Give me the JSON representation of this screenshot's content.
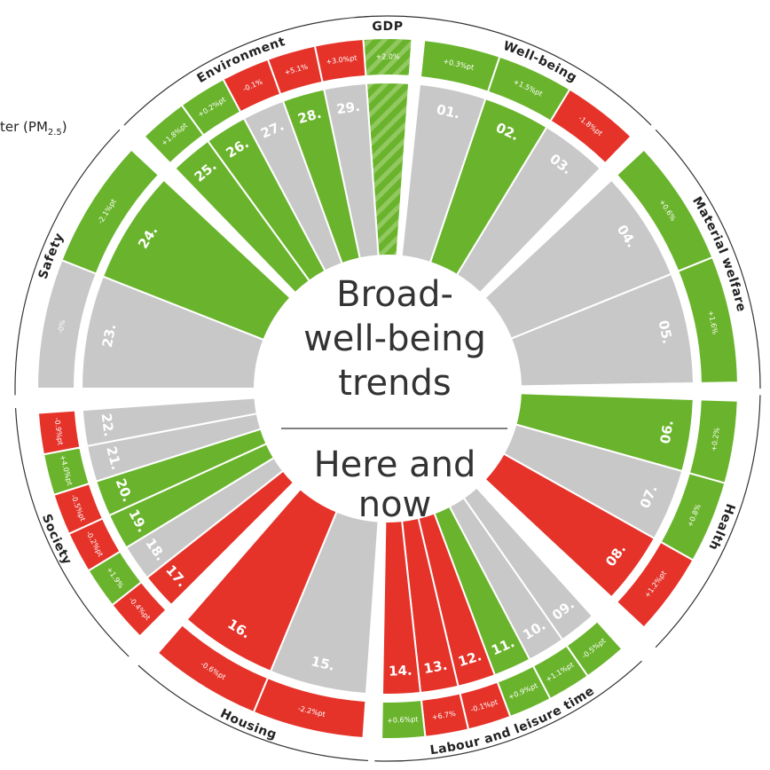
{
  "legend_fragment": {
    "text": "ter (PM",
    "subscript": "2.5",
    "close": ")"
  },
  "center": {
    "title": [
      "Broad-",
      "well-being",
      "trends"
    ],
    "subtitle": [
      "Here and",
      "now"
    ]
  },
  "groups": [
    {
      "label": "GDP",
      "items": [
        {
          "color": "#6ab42d",
          "pattern": "hatched",
          "change": "+2.0%",
          "change_color": "#6ab42d",
          "change_pattern": "hatched"
        }
      ]
    },
    {
      "label": "Well-being",
      "items": [
        {
          "number": "01.",
          "color": "#c8c8c8",
          "change": "+0.3%pt",
          "change_color": "#6ab42d"
        },
        {
          "number": "02.",
          "color": "#6ab42d",
          "change": "+1.5%pt",
          "change_color": "#6ab42d"
        },
        {
          "number": "03.",
          "color": "#c8c8c8",
          "change": "-1.8%pt",
          "change_color": "#e5332a"
        }
      ]
    },
    {
      "label": "Material welfare",
      "items": [
        {
          "number": "04.",
          "color": "#c8c8c8",
          "change": "+0.6%",
          "change_color": "#6ab42d"
        },
        {
          "number": "05.",
          "color": "#c8c8c8",
          "change": "+1.6%",
          "change_color": "#6ab42d"
        }
      ]
    },
    {
      "label": "Health",
      "items": [
        {
          "number": "06.",
          "color": "#6ab42d",
          "change": "+0.2%",
          "change_color": "#6ab42d"
        },
        {
          "number": "07.",
          "color": "#c8c8c8",
          "change": "+0.8%",
          "change_color": "#6ab42d"
        },
        {
          "number": "08.",
          "color": "#e5332a",
          "change": "+1.2%pt",
          "change_color": "#e5332a"
        }
      ]
    },
    {
      "label": "Labour and leisure time",
      "items": [
        {
          "number": "09.",
          "color": "#c8c8c8",
          "change": "-0.5%pt",
          "change_color": "#6ab42d"
        },
        {
          "number": "10.",
          "color": "#c8c8c8",
          "change": "+1.1%pt",
          "change_color": "#6ab42d"
        },
        {
          "number": "11.",
          "color": "#6ab42d",
          "change": "+0.9%pt",
          "change_color": "#6ab42d"
        },
        {
          "number": "12.",
          "color": "#e5332a",
          "change": "-0.1%pt",
          "change_color": "#e5332a"
        },
        {
          "number": "13.",
          "color": "#e5332a",
          "change": "+6.7%",
          "change_color": "#e5332a"
        },
        {
          "number": "14.",
          "color": "#e5332a",
          "change": "+0.6%pt",
          "change_color": "#6ab42d"
        }
      ]
    },
    {
      "label": "Housing",
      "items": [
        {
          "number": "15.",
          "color": "#c8c8c8",
          "change": "-2.2%pt",
          "change_color": "#e5332a"
        },
        {
          "number": "16.",
          "color": "#e5332a",
          "change": "-0.6%pt",
          "change_color": "#e5332a"
        }
      ]
    },
    {
      "label": "Society",
      "items": [
        {
          "number": "17.",
          "color": "#e5332a",
          "change": "-0.4%pt",
          "change_color": "#e5332a"
        },
        {
          "number": "18.",
          "color": "#c8c8c8",
          "change": "+1.9%",
          "change_color": "#6ab42d"
        },
        {
          "number": "19.",
          "color": "#6ab42d",
          "change": "-0.2%pt",
          "change_color": "#e5332a"
        },
        {
          "number": "20.",
          "color": "#6ab42d",
          "change": "-0.5%pt",
          "change_color": "#e5332a"
        },
        {
          "number": "21.",
          "color": "#c8c8c8",
          "change": "+4.0%pt",
          "change_color": "#6ab42d"
        },
        {
          "number": "22.",
          "color": "#c8c8c8",
          "change": "-0.9%pt",
          "change_color": "#e5332a"
        }
      ]
    },
    {
      "label": "Safety",
      "items": [
        {
          "number": "23.",
          "color": "#c8c8c8",
          "change": "-0%",
          "change_color": "#c8c8c8"
        },
        {
          "number": "24.",
          "color": "#6ab42d",
          "change": "-2.1%pt",
          "change_color": "#6ab42d"
        }
      ]
    },
    {
      "label": "Environment",
      "items": [
        {
          "number": "25.",
          "color": "#6ab42d",
          "change": "+1.8%pt",
          "change_color": "#6ab42d"
        },
        {
          "number": "26.",
          "color": "#6ab42d",
          "change": "+0.2%pt",
          "change_color": "#6ab42d"
        },
        {
          "number": "27.",
          "color": "#c8c8c8",
          "change": "-0.1%",
          "change_color": "#e5332a"
        },
        {
          "number": "28.",
          "color": "#6ab42d",
          "change": "+5.1%",
          "change_color": "#e5332a"
        },
        {
          "number": "29.",
          "color": "#c8c8c8",
          "change": "+3.0%pt",
          "change_color": "#e5332a"
        }
      ]
    }
  ]
}
